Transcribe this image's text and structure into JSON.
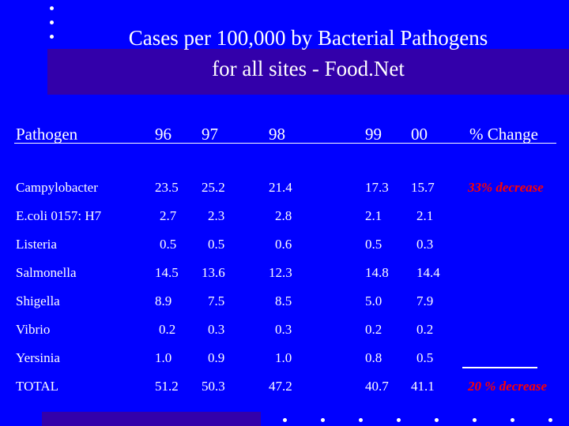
{
  "title": {
    "line1": "Cases per 100,000 by Bacterial Pathogens",
    "line2": "for all sites - Food.Net"
  },
  "table": {
    "headers": [
      "Pathogen",
      "96",
      "97",
      "98",
      "99",
      "00",
      "% Change"
    ],
    "rows": [
      {
        "pathogen": "Campylobacter",
        "values": [
          "23.5",
          "25.2",
          "21.4",
          "17.3",
          "15.7"
        ],
        "change": "33% decrease"
      },
      {
        "pathogen": "E.coli 0157: H7",
        "values": [
          "2.7",
          "2.3",
          "2.8",
          "2.1",
          "2.1"
        ],
        "change": ""
      },
      {
        "pathogen": "Listeria",
        "values": [
          "0.5",
          "0.5",
          "0.6",
          "0.5",
          "0.3"
        ],
        "change": ""
      },
      {
        "pathogen": "Salmonella",
        "values": [
          "14.5",
          "13.6",
          "12.3",
          "14.8",
          "14.4"
        ],
        "change": ""
      },
      {
        "pathogen": "Shigella",
        "values": [
          "8.9",
          "7.5",
          "8.5",
          "5.0",
          "7.9"
        ],
        "change": ""
      },
      {
        "pathogen": "Vibrio",
        "values": [
          "0.2",
          "0.3",
          "0.3",
          "0.2",
          "0.2"
        ],
        "change": ""
      },
      {
        "pathogen": "Yersinia",
        "values": [
          "1.0",
          "0.9",
          "1.0",
          "0.8",
          "0.5"
        ],
        "change": ""
      },
      {
        "pathogen": "TOTAL",
        "values": [
          "51.2",
          "50.3",
          "47.2",
          "40.7",
          "41.1"
        ],
        "change": "20 % decrease"
      }
    ]
  },
  "colors": {
    "background": "#0000ff",
    "accent_bar": "#3300aa",
    "change_text": "#ff0000",
    "text": "#ffffff"
  }
}
